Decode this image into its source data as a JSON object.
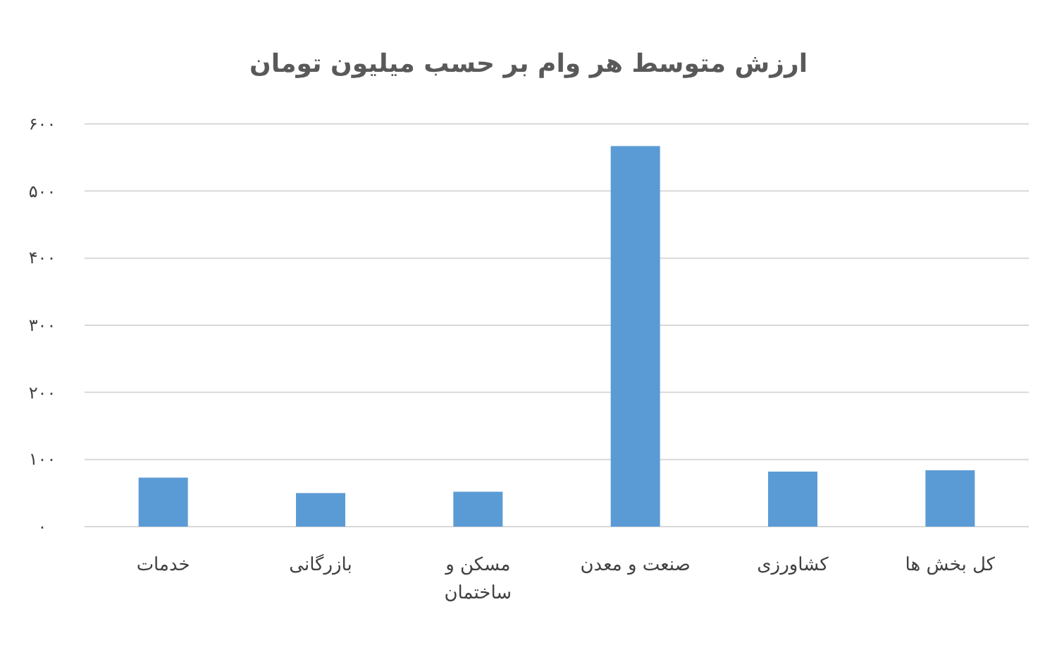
{
  "chart_data": {
    "type": "bar",
    "title": "ارزش متوسط هر وام بر حسب میلیون تومان",
    "categories": [
      "خدمات",
      "بازرگانی",
      "مسکن و ساختمان",
      "صنعت و معدن",
      "کشاورزی",
      "کل بخش ها"
    ],
    "values": [
      73,
      50,
      52,
      567,
      82,
      84
    ],
    "color": "#5b9bd5",
    "ylim": [
      0,
      600
    ],
    "yticks": [
      {
        "value": 0,
        "label": "۰"
      },
      {
        "value": 100,
        "label": "۱۰۰"
      },
      {
        "value": 200,
        "label": "۲۰۰"
      },
      {
        "value": 300,
        "label": "۳۰۰"
      },
      {
        "value": 400,
        "label": "۴۰۰"
      },
      {
        "value": 500,
        "label": "۵۰۰"
      },
      {
        "value": 600,
        "label": "۶۰۰"
      }
    ],
    "grid": "y"
  }
}
